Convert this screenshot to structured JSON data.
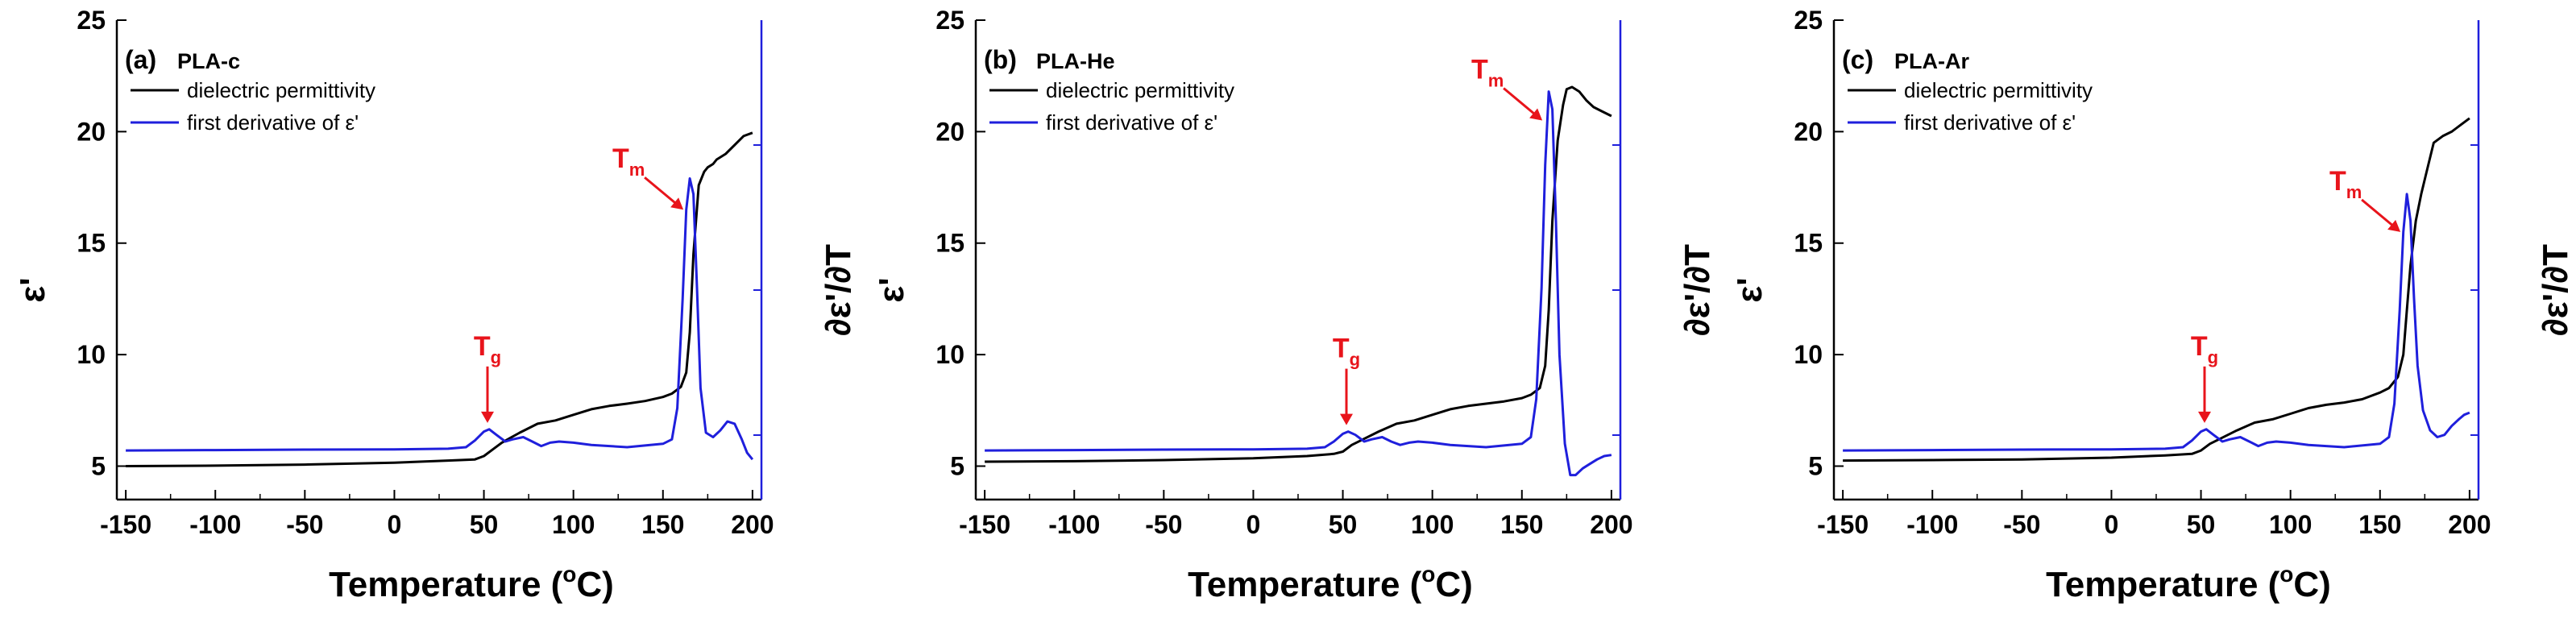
{
  "colors": {
    "permittivity": "#000000",
    "derivative": "#1f1fdc",
    "annotation": "#e8141b",
    "axis_right": "#1f1fdc"
  },
  "shared": {
    "xlabel_main": "Temperature (",
    "xlabel_sup": "o",
    "xlabel_end": "C)",
    "ylabel_left": "ε'",
    "ylabel_right": "∂ε'/∂T",
    "legend_perm": "dielectric permittivity",
    "legend_deriv": "first derivative of ε'",
    "tg_main": "T",
    "tg_sub": "g",
    "tm_main": "T",
    "tm_sub": "m"
  },
  "chart_data": [
    {
      "type": "line",
      "panel_label": "(a)",
      "panel_name": "PLA-c",
      "xlim": [
        -155,
        205
      ],
      "ylim": [
        3.5,
        25
      ],
      "xticks": [
        -150,
        -100,
        -50,
        0,
        50,
        100,
        150,
        200
      ],
      "yticks": [
        5,
        10,
        15,
        20,
        25
      ],
      "tg_x": 52,
      "tg_y": 6.65,
      "tm_x": 165,
      "tm_y": 16.5,
      "series": [
        {
          "name": "dielectric permittivity",
          "axis": "left",
          "x": [
            -150,
            -100,
            -50,
            0,
            30,
            45,
            50,
            55,
            60,
            70,
            80,
            90,
            100,
            110,
            120,
            130,
            140,
            150,
            155,
            160,
            163,
            165,
            167,
            170,
            173,
            175,
            178,
            180,
            185,
            190,
            195,
            200
          ],
          "y": [
            5.0,
            5.02,
            5.07,
            5.15,
            5.25,
            5.3,
            5.45,
            5.75,
            6.05,
            6.5,
            6.9,
            7.05,
            7.3,
            7.55,
            7.7,
            7.8,
            7.92,
            8.1,
            8.25,
            8.55,
            9.2,
            11.0,
            14.5,
            17.6,
            18.2,
            18.4,
            18.55,
            18.75,
            19.0,
            19.4,
            19.8,
            19.95
          ]
        },
        {
          "name": "first derivative of ε'",
          "axis": "left",
          "x": [
            -150,
            -100,
            -50,
            0,
            30,
            40,
            45,
            50,
            53,
            57,
            62,
            66,
            72,
            77,
            82,
            87,
            92,
            100,
            110,
            130,
            150,
            155,
            158,
            161,
            163,
            165,
            167,
            169,
            171,
            174,
            178,
            182,
            186,
            190,
            194,
            197,
            200
          ],
          "y": [
            5.7,
            5.72,
            5.74,
            5.75,
            5.78,
            5.85,
            6.15,
            6.55,
            6.65,
            6.4,
            6.1,
            6.2,
            6.3,
            6.1,
            5.9,
            6.05,
            6.1,
            6.05,
            5.95,
            5.85,
            6.0,
            6.2,
            7.6,
            12.5,
            16.5,
            17.9,
            17.2,
            13.0,
            8.5,
            6.5,
            6.3,
            6.6,
            7.0,
            6.9,
            6.2,
            5.6,
            5.3
          ]
        }
      ]
    },
    {
      "type": "line",
      "panel_label": "(b)",
      "panel_name": "PLA-He",
      "xlim": [
        -155,
        205
      ],
      "ylim": [
        3.5,
        25
      ],
      "xticks": [
        -150,
        -100,
        -50,
        0,
        50,
        100,
        150,
        200
      ],
      "yticks": [
        5,
        10,
        15,
        20,
        25
      ],
      "tg_x": 52,
      "tg_y": 6.55,
      "tm_x": 165,
      "tm_y": 20.5,
      "series": [
        {
          "name": "dielectric permittivity",
          "axis": "left",
          "x": [
            -150,
            -100,
            -50,
            0,
            30,
            45,
            50,
            55,
            60,
            70,
            80,
            90,
            100,
            110,
            120,
            130,
            140,
            150,
            155,
            160,
            163,
            165,
            167,
            170,
            173,
            175,
            178,
            182,
            186,
            190,
            195,
            200
          ],
          "y": [
            5.2,
            5.22,
            5.27,
            5.35,
            5.45,
            5.55,
            5.65,
            5.95,
            6.15,
            6.55,
            6.9,
            7.05,
            7.3,
            7.55,
            7.7,
            7.8,
            7.9,
            8.05,
            8.2,
            8.5,
            9.5,
            12.0,
            16.0,
            19.6,
            21.2,
            21.9,
            22.0,
            21.8,
            21.4,
            21.1,
            20.9,
            20.7
          ]
        },
        {
          "name": "first derivative of ε'",
          "axis": "left",
          "x": [
            -150,
            -100,
            -50,
            0,
            30,
            40,
            45,
            50,
            53,
            57,
            62,
            66,
            72,
            77,
            82,
            87,
            92,
            100,
            110,
            130,
            150,
            155,
            158,
            161,
            163,
            165,
            167,
            169,
            171,
            174,
            177,
            180,
            184,
            188,
            192,
            196,
            200
          ],
          "y": [
            5.7,
            5.72,
            5.74,
            5.75,
            5.78,
            5.85,
            6.1,
            6.45,
            6.55,
            6.4,
            6.1,
            6.2,
            6.3,
            6.1,
            5.95,
            6.05,
            6.1,
            6.05,
            5.95,
            5.85,
            6.0,
            6.3,
            8.0,
            13.0,
            18.5,
            21.8,
            21.0,
            16.0,
            10.0,
            6.0,
            4.6,
            4.6,
            4.9,
            5.1,
            5.3,
            5.45,
            5.5
          ]
        }
      ]
    },
    {
      "type": "line",
      "panel_label": "(c)",
      "panel_name": "PLA-Ar",
      "xlim": [
        -155,
        205
      ],
      "ylim": [
        3.5,
        25
      ],
      "xticks": [
        -150,
        -100,
        -50,
        0,
        50,
        100,
        150,
        200
      ],
      "yticks": [
        5,
        10,
        15,
        20,
        25
      ],
      "tg_x": 52,
      "tg_y": 6.65,
      "tm_x": 165,
      "tm_y": 15.5,
      "series": [
        {
          "name": "dielectric permittivity",
          "axis": "left",
          "x": [
            -150,
            -100,
            -50,
            0,
            30,
            45,
            50,
            55,
            60,
            70,
            80,
            90,
            100,
            110,
            120,
            130,
            140,
            150,
            155,
            160,
            163,
            165,
            167,
            170,
            173,
            176,
            180,
            185,
            190,
            195,
            200
          ],
          "y": [
            5.25,
            5.27,
            5.3,
            5.38,
            5.48,
            5.55,
            5.7,
            6.0,
            6.2,
            6.6,
            6.95,
            7.1,
            7.35,
            7.6,
            7.75,
            7.85,
            8.0,
            8.3,
            8.5,
            9.0,
            10.0,
            12.0,
            14.0,
            16.0,
            17.2,
            18.2,
            19.5,
            19.8,
            20.0,
            20.3,
            20.6
          ]
        },
        {
          "name": "first derivative of ε'",
          "axis": "left",
          "x": [
            -150,
            -100,
            -50,
            0,
            30,
            40,
            45,
            50,
            53,
            57,
            62,
            66,
            72,
            77,
            82,
            87,
            92,
            100,
            110,
            130,
            150,
            155,
            158,
            161,
            163,
            165,
            167,
            169,
            171,
            174,
            178,
            182,
            186,
            190,
            194,
            197,
            200
          ],
          "y": [
            5.7,
            5.72,
            5.74,
            5.75,
            5.78,
            5.85,
            6.15,
            6.55,
            6.65,
            6.4,
            6.1,
            6.2,
            6.3,
            6.1,
            5.9,
            6.05,
            6.1,
            6.05,
            5.95,
            5.85,
            6.0,
            6.3,
            7.8,
            12.0,
            15.5,
            17.2,
            16.0,
            12.5,
            9.5,
            7.5,
            6.6,
            6.3,
            6.4,
            6.8,
            7.1,
            7.3,
            7.4
          ]
        }
      ]
    }
  ]
}
